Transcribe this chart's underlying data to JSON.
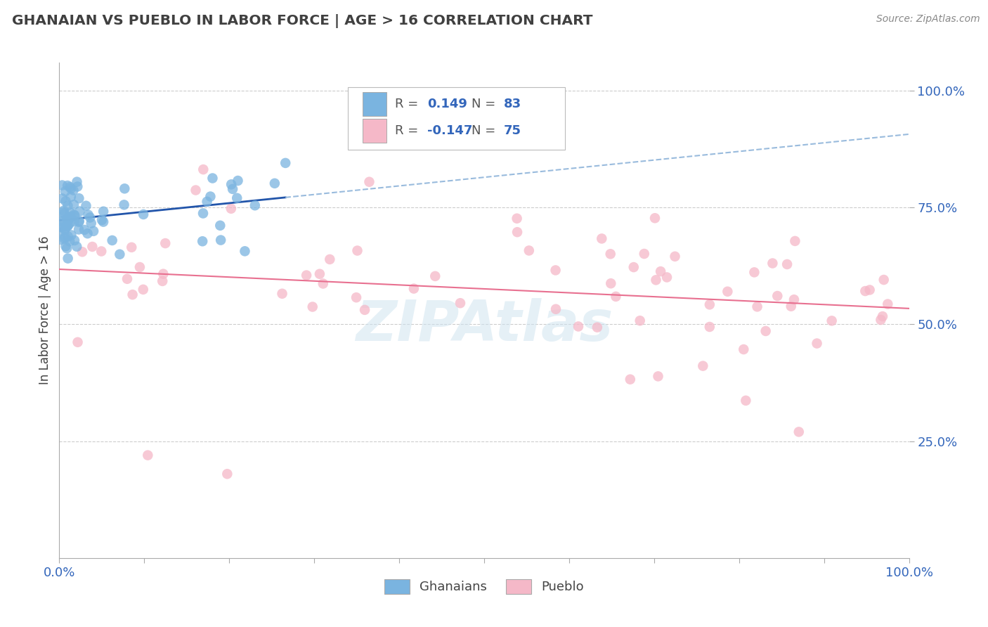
{
  "title": "GHANAIAN VS PUEBLO IN LABOR FORCE | AGE > 16 CORRELATION CHART",
  "source_text": "Source: ZipAtlas.com",
  "ylabel": "In Labor Force | Age > 16",
  "background_color": "#ffffff",
  "blue_color": "#7ab4e0",
  "pink_color": "#f5b8c8",
  "trend_blue_solid_color": "#2255aa",
  "trend_blue_dash_color": "#99bbdd",
  "trend_pink_color": "#e87090",
  "watermark": "ZIPAtlas",
  "title_color": "#404040",
  "tick_color": "#3366bb",
  "source_color": "#888888",
  "grid_color": "#cccccc",
  "legend_r1_val": "0.149",
  "legend_n1_val": "83",
  "legend_r2_val": "-0.147",
  "legend_n2_val": "75",
  "seed": 123
}
